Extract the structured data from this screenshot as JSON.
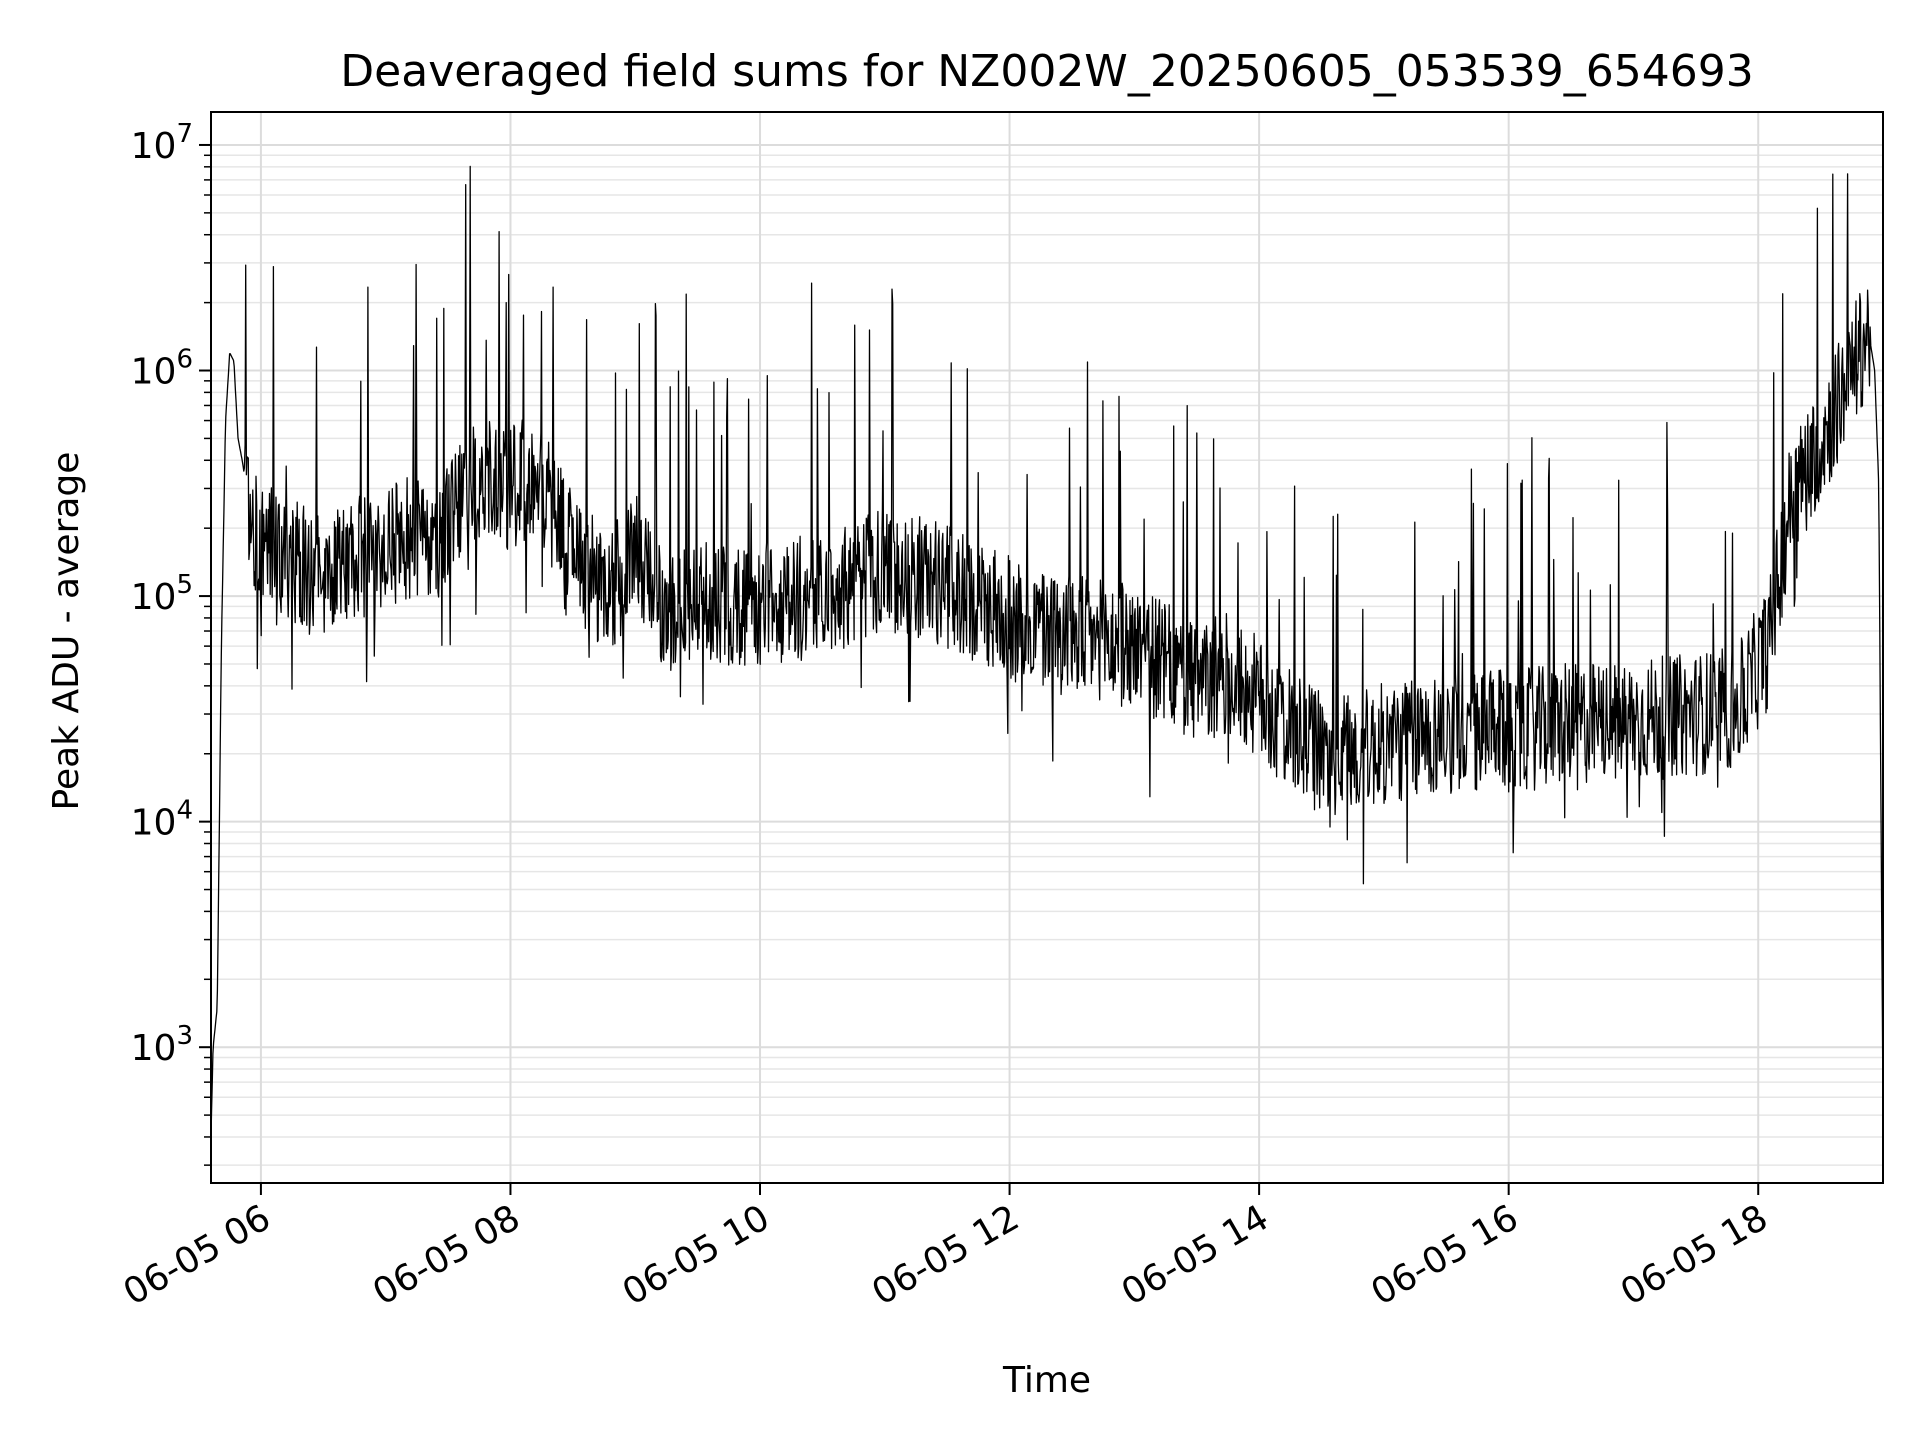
{
  "chart_data": {
    "type": "line",
    "title": "Deaveraged field sums for NZ002W_20250605_053539_654693",
    "xlabel": "Time",
    "ylabel": "Peak ADU - average",
    "y_scale": "log",
    "x_range": [
      "06-05 05:36",
      "06-05 19:00"
    ],
    "ylim": [
      250,
      14000000
    ],
    "grid": "on (major and minor)",
    "line_color": "#000000",
    "x_ticks": [
      {
        "value": "06-05 06:00",
        "label": "06-05 06"
      },
      {
        "value": "06-05 08:00",
        "label": "06-05 08"
      },
      {
        "value": "06-05 10:00",
        "label": "06-05 10"
      },
      {
        "value": "06-05 12:00",
        "label": "06-05 12"
      },
      {
        "value": "06-05 14:00",
        "label": "06-05 14"
      },
      {
        "value": "06-05 16:00",
        "label": "06-05 16"
      },
      {
        "value": "06-05 18:00",
        "label": "06-05 18"
      }
    ],
    "y_ticks": [
      {
        "value": 1000,
        "base": "10",
        "exp": "3"
      },
      {
        "value": 10000,
        "base": "10",
        "exp": "4"
      },
      {
        "value": 100000,
        "base": "10",
        "exp": "5"
      },
      {
        "value": 1000000,
        "base": "10",
        "exp": "6"
      },
      {
        "value": 10000000,
        "base": "10",
        "exp": "7"
      }
    ],
    "series": [
      {
        "x": [
          "06-05 05:36",
          "06-05 05:37",
          "06-05 05:39",
          "06-05 05:41",
          "06-05 05:43",
          "06-05 05:45",
          "06-05 05:47",
          "06-05 05:49",
          "06-05 05:51",
          "06-05 05:53",
          "06-05 05:55",
          "06-05 05:57",
          "06-05 06:00",
          "06-05 06:10",
          "06-05 06:20",
          "06-05 06:30",
          "06-05 06:40",
          "06-05 06:50",
          "06-05 07:00",
          "06-05 07:10",
          "06-05 07:20",
          "06-05 07:30",
          "06-05 07:40",
          "06-05 07:50",
          "06-05 08:00",
          "06-05 08:10",
          "06-05 08:20",
          "06-05 08:30",
          "06-05 08:40",
          "06-05 08:50",
          "06-05 09:00",
          "06-05 09:10",
          "06-05 09:20",
          "06-05 09:30",
          "06-05 09:40",
          "06-05 09:50",
          "06-05 10:00",
          "06-05 10:20",
          "06-05 10:40",
          "06-05 11:00",
          "06-05 11:20",
          "06-05 11:40",
          "06-05 12:00",
          "06-05 12:20",
          "06-05 12:40",
          "06-05 13:00",
          "06-05 13:15",
          "06-05 13:30",
          "06-05 13:45",
          "06-05 14:00",
          "06-05 14:15",
          "06-05 14:30",
          "06-05 14:45",
          "06-05 15:00",
          "06-05 15:30",
          "06-05 16:00",
          "06-05 16:30",
          "06-05 17:00",
          "06-05 17:30",
          "06-05 17:50",
          "06-05 18:05",
          "06-05 18:15",
          "06-05 18:25",
          "06-05 18:35",
          "06-05 18:45",
          "06-05 18:53",
          "06-05 18:56",
          "06-05 18:58",
          "06-05 19:00"
        ],
        "y": [
          400,
          1000,
          1500,
          60000,
          600000,
          1200000,
          1100000,
          500000,
          400000,
          300000,
          250000,
          200000,
          180000,
          150000,
          140000,
          130000,
          140000,
          150000,
          160000,
          180000,
          170000,
          200000,
          300000,
          320000,
          300000,
          350000,
          250000,
          150000,
          120000,
          110000,
          170000,
          90000,
          85000,
          90000,
          95000,
          90000,
          90000,
          100000,
          110000,
          130000,
          120000,
          100000,
          80000,
          70000,
          65000,
          60000,
          50000,
          40000,
          45000,
          35000,
          25000,
          20000,
          20000,
          22000,
          25000,
          25000,
          27000,
          28000,
          30000,
          32000,
          60000,
          250000,
          400000,
          600000,
          1000000,
          1500000,
          1000000,
          300000,
          500
        ]
      }
    ]
  }
}
